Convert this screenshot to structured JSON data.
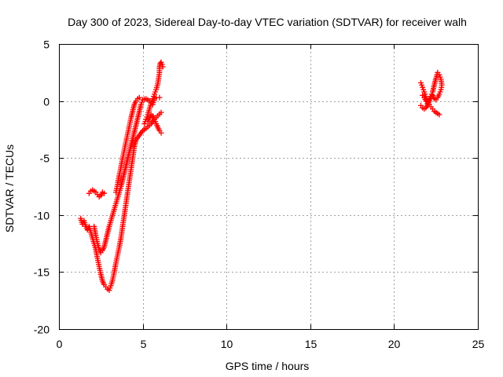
{
  "chart_data": {
    "type": "scatter",
    "title": "Day 300 of 2023, Sidereal Day-to-day VTEC variation (SDTVAR) for receiver walh",
    "xlabel": "GPS time / hours",
    "ylabel": "SDTVAR / TECUs",
    "xlim": [
      0,
      25
    ],
    "ylim": [
      -20,
      5
    ],
    "xticks": [
      0,
      5,
      10,
      15,
      20,
      25
    ],
    "yticks": [
      -20,
      -15,
      -10,
      -5,
      0,
      5
    ],
    "xtick_labels": [
      "0",
      "5",
      "10",
      "15",
      "20",
      "25"
    ],
    "ytick_labels": [
      "-20",
      "-15",
      "-10",
      "-5",
      "0",
      "5"
    ],
    "grid": true,
    "legend": "none",
    "marker": "plus",
    "color": "#ff0000",
    "series": [
      {
        "segments": [
          [
            [
              1.3,
              -10.3
            ],
            [
              1.4,
              -10.8
            ],
            [
              1.5,
              -10.5
            ],
            [
              1.6,
              -11.0
            ],
            [
              1.7,
              -11.3
            ],
            [
              1.8,
              -11.0
            ],
            [
              1.9,
              -11.5
            ],
            [
              2.0,
              -12.0
            ],
            [
              2.1,
              -12.5
            ],
            [
              2.2,
              -13.0
            ],
            [
              2.3,
              -13.8
            ],
            [
              2.4,
              -14.5
            ],
            [
              2.5,
              -15.2
            ],
            [
              2.6,
              -15.8
            ],
            [
              2.7,
              -16.1
            ],
            [
              2.8,
              -16.3
            ],
            [
              2.9,
              -16.5
            ],
            [
              3.0,
              -16.6
            ],
            [
              3.1,
              -16.2
            ],
            [
              3.2,
              -15.7
            ],
            [
              3.3,
              -15.0
            ],
            [
              3.4,
              -14.2
            ],
            [
              3.5,
              -13.5
            ],
            [
              3.6,
              -12.8
            ],
            [
              3.7,
              -12.0
            ],
            [
              3.8,
              -11.0
            ],
            [
              3.9,
              -10.0
            ],
            [
              4.0,
              -9.0
            ],
            [
              4.1,
              -8.0
            ],
            [
              4.2,
              -7.0
            ],
            [
              4.3,
              -6.0
            ],
            [
              4.4,
              -5.0
            ],
            [
              4.5,
              -4.0
            ],
            [
              4.6,
              -3.4
            ],
            [
              4.8,
              -3.0
            ],
            [
              5.0,
              -2.6
            ],
            [
              5.2,
              -2.4
            ],
            [
              5.5,
              -2.0
            ],
            [
              5.7,
              -1.6
            ],
            [
              5.9,
              -1.3
            ],
            [
              6.1,
              -1.0
            ]
          ],
          [
            [
              1.8,
              -8.1
            ],
            [
              1.9,
              -7.9
            ],
            [
              2.0,
              -7.8
            ],
            [
              2.1,
              -7.9
            ],
            [
              2.2,
              -8.0
            ],
            [
              2.3,
              -8.2
            ],
            [
              2.4,
              -8.4
            ],
            [
              2.5,
              -8.3
            ],
            [
              2.6,
              -8.0
            ],
            [
              2.7,
              -8.1
            ]
          ],
          [
            [
              2.1,
              -11.0
            ],
            [
              2.2,
              -11.8
            ],
            [
              2.3,
              -12.5
            ],
            [
              2.4,
              -13.0
            ],
            [
              2.5,
              -13.3
            ],
            [
              2.6,
              -13.1
            ],
            [
              2.7,
              -12.8
            ],
            [
              2.8,
              -12.2
            ],
            [
              2.9,
              -11.6
            ],
            [
              3.0,
              -11.0
            ],
            [
              3.1,
              -10.5
            ],
            [
              3.2,
              -10.0
            ],
            [
              3.3,
              -9.5
            ],
            [
              3.4,
              -9.0
            ],
            [
              3.5,
              -8.5
            ],
            [
              3.6,
              -8.0
            ],
            [
              3.7,
              -7.5
            ],
            [
              3.8,
              -6.9
            ],
            [
              3.9,
              -6.3
            ],
            [
              4.0,
              -5.7
            ],
            [
              4.1,
              -5.1
            ],
            [
              4.2,
              -4.5
            ],
            [
              4.3,
              -3.9
            ],
            [
              4.4,
              -3.3
            ],
            [
              4.5,
              -2.7
            ],
            [
              4.6,
              -2.1
            ],
            [
              4.7,
              -1.5
            ],
            [
              4.8,
              -0.9
            ],
            [
              4.9,
              -0.3
            ],
            [
              5.0,
              0.1
            ],
            [
              5.2,
              0.2
            ],
            [
              5.4,
              0.0
            ],
            [
              5.6,
              -0.3
            ],
            [
              5.7,
              0.2
            ],
            [
              5.8,
              0.3
            ],
            [
              6.0,
              0.3
            ]
          ],
          [
            [
              3.4,
              -8.0
            ],
            [
              3.5,
              -7.3
            ],
            [
              3.6,
              -6.5
            ],
            [
              3.7,
              -5.8
            ],
            [
              3.8,
              -5.0
            ],
            [
              3.9,
              -4.3
            ],
            [
              4.0,
              -3.6
            ],
            [
              4.1,
              -2.9
            ],
            [
              4.2,
              -2.2
            ],
            [
              4.3,
              -1.5
            ],
            [
              4.4,
              -0.9
            ],
            [
              4.5,
              -0.3
            ],
            [
              4.6,
              0.0
            ],
            [
              4.7,
              0.2
            ],
            [
              4.8,
              0.3
            ]
          ],
          [
            [
              5.1,
              -2.0
            ],
            [
              5.2,
              -1.6
            ],
            [
              5.3,
              -1.2
            ],
            [
              5.4,
              -0.7
            ],
            [
              5.5,
              -0.2
            ],
            [
              5.6,
              0.2
            ],
            [
              5.7,
              0.6
            ],
            [
              5.8,
              1.0
            ],
            [
              5.9,
              1.5
            ],
            [
              5.95,
              2.0
            ],
            [
              6.0,
              2.5
            ],
            [
              6.0,
              3.0
            ],
            [
              6.05,
              3.3
            ],
            [
              6.1,
              3.4
            ],
            [
              6.15,
              3.2
            ],
            [
              6.2,
              3.0
            ]
          ],
          [
            [
              5.3,
              -1.8
            ],
            [
              5.4,
              -1.5
            ],
            [
              5.5,
              -1.2
            ],
            [
              5.6,
              -1.3
            ],
            [
              5.7,
              -1.6
            ],
            [
              5.8,
              -2.0
            ],
            [
              5.9,
              -2.3
            ],
            [
              6.0,
              -2.6
            ],
            [
              6.1,
              -2.8
            ]
          ]
        ]
      },
      {
        "segments": [
          [
            [
              21.6,
              1.6
            ],
            [
              21.7,
              1.2
            ],
            [
              21.8,
              0.8
            ],
            [
              21.9,
              0.4
            ],
            [
              22.0,
              0.0
            ],
            [
              22.1,
              -0.3
            ],
            [
              22.2,
              -0.5
            ],
            [
              22.3,
              -0.7
            ],
            [
              22.4,
              -0.9
            ],
            [
              22.5,
              -1.0
            ],
            [
              22.6,
              -1.1
            ],
            [
              22.7,
              -1.2
            ]
          ],
          [
            [
              21.6,
              -0.4
            ],
            [
              21.7,
              -0.6
            ],
            [
              21.8,
              -0.7
            ],
            [
              21.9,
              -0.6
            ],
            [
              22.0,
              -0.3
            ],
            [
              22.1,
              0.1
            ],
            [
              22.2,
              0.4
            ],
            [
              22.3,
              0.8
            ],
            [
              22.4,
              1.4
            ],
            [
              22.5,
              2.0
            ],
            [
              22.6,
              2.5
            ],
            [
              22.7,
              2.3
            ],
            [
              22.8,
              1.9
            ],
            [
              22.85,
              1.4
            ],
            [
              22.8,
              1.0
            ],
            [
              22.7,
              0.6
            ],
            [
              22.6,
              0.3
            ],
            [
              22.5,
              0.1
            ],
            [
              22.4,
              0.2
            ],
            [
              22.3,
              0.5
            ],
            [
              22.2,
              0.4
            ],
            [
              22.1,
              0.0
            ],
            [
              22.0,
              -0.2
            ],
            [
              21.9,
              0.0
            ],
            [
              21.8,
              0.3
            ],
            [
              21.7,
              0.5
            ]
          ]
        ]
      }
    ]
  }
}
